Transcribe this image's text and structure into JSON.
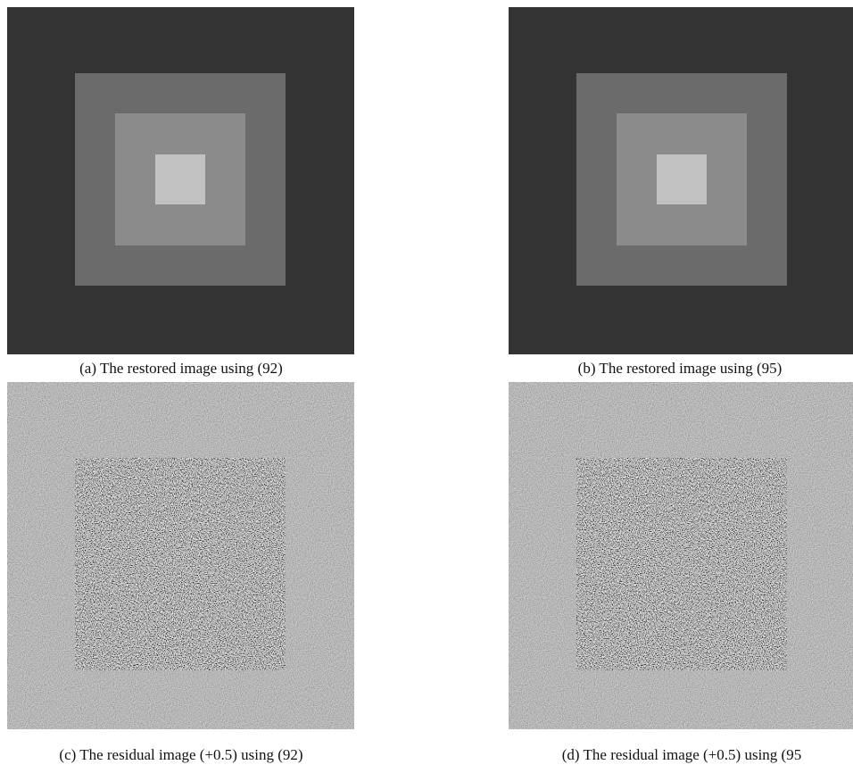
{
  "panels": [
    {
      "caption": "(a) The restored image using (92)"
    },
    {
      "caption": "(b) The restored image using (95)"
    },
    {
      "caption": "(c) The residual image (+0.5) using (92)"
    },
    {
      "caption": "(d) The residual image (+0.5) using (95"
    }
  ]
}
